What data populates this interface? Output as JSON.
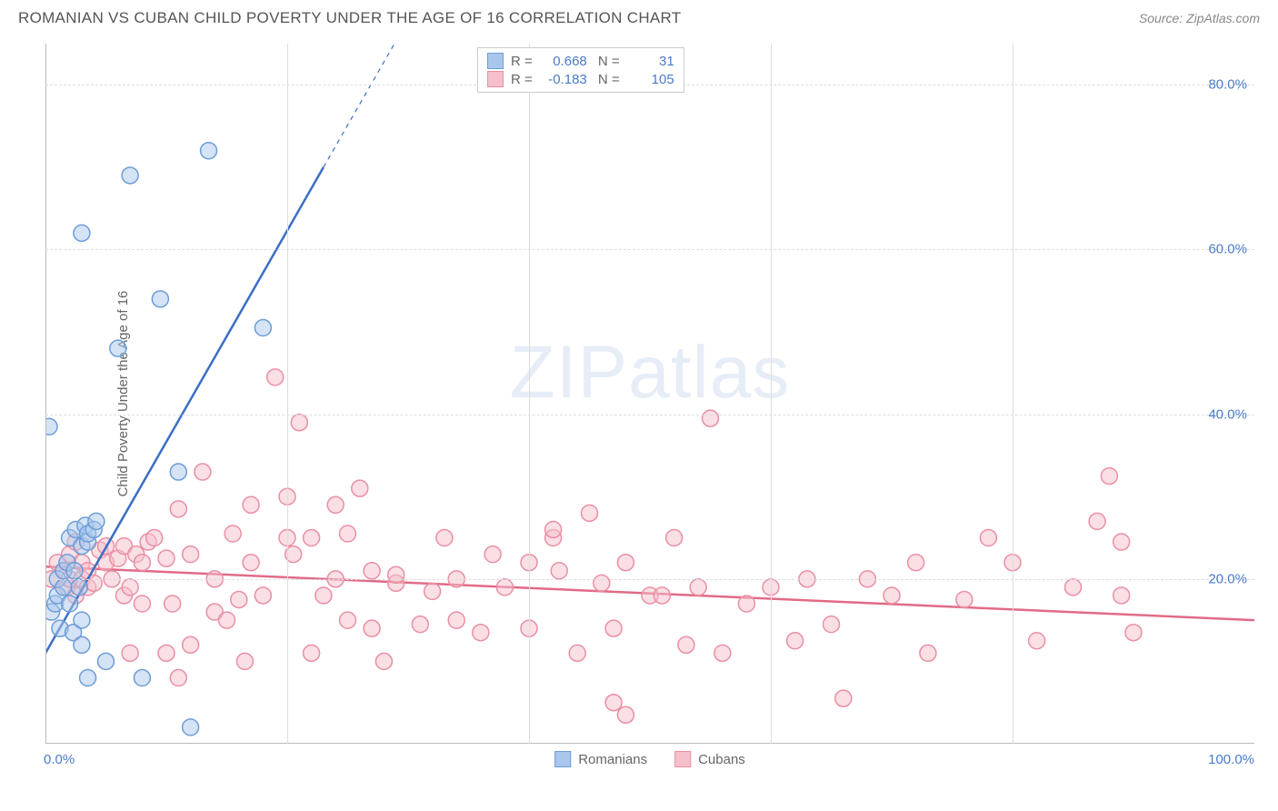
{
  "header": {
    "title": "ROMANIAN VS CUBAN CHILD POVERTY UNDER THE AGE OF 16 CORRELATION CHART",
    "source": "Source: ZipAtlas.com"
  },
  "chart": {
    "type": "scatter",
    "y_axis_label": "Child Poverty Under the Age of 16",
    "watermark": "ZIPatlas",
    "background_color": "#ffffff",
    "grid_color": "#dddddd",
    "axis_color": "#bbbbbb",
    "tick_color": "#4a7bc8",
    "xlim": [
      0,
      100
    ],
    "ylim": [
      0,
      85
    ],
    "yticks": [
      20,
      40,
      60,
      80
    ],
    "ytick_labels": [
      "20.0%",
      "40.0%",
      "60.0%",
      "80.0%"
    ],
    "xtick_left": "0.0%",
    "xtick_right": "100.0%",
    "vgrid_positions": [
      20,
      40,
      60,
      80
    ],
    "marker_radius": 9,
    "marker_opacity": 0.5,
    "marker_stroke_width": 1.5,
    "line_width": 2.5,
    "series": [
      {
        "name": "Romanians",
        "color_fill": "#a9c7ec",
        "color_stroke": "#6d9dd8",
        "line_color": "#3b6fc4",
        "r_value": "0.668",
        "n_value": "31",
        "trend": {
          "x1": 0,
          "y1": 11,
          "x2": 23,
          "y2": 70,
          "dash_x2": 32,
          "dash_y2": 93
        },
        "points": [
          [
            0.5,
            16
          ],
          [
            0.8,
            17
          ],
          [
            1,
            18
          ],
          [
            1,
            20
          ],
          [
            1.2,
            14
          ],
          [
            1.5,
            19
          ],
          [
            1.5,
            21
          ],
          [
            1.8,
            22
          ],
          [
            2,
            17
          ],
          [
            2,
            25
          ],
          [
            2.3,
            13.5
          ],
          [
            2.4,
            21
          ],
          [
            2.5,
            26
          ],
          [
            2.8,
            19
          ],
          [
            3,
            15
          ],
          [
            3,
            24
          ],
          [
            3.3,
            26.5
          ],
          [
            3.5,
            24.5
          ],
          [
            3.5,
            25.5
          ],
          [
            3,
            12
          ],
          [
            4,
            26
          ],
          [
            4.2,
            27
          ],
          [
            0.3,
            38.5
          ],
          [
            3,
            62
          ],
          [
            3.5,
            8
          ],
          [
            5,
            10
          ],
          [
            6,
            48
          ],
          [
            7,
            69
          ],
          [
            8,
            8
          ],
          [
            9.5,
            54
          ],
          [
            12,
            2
          ],
          [
            18,
            50.5
          ],
          [
            13.5,
            72
          ],
          [
            11,
            33
          ]
        ]
      },
      {
        "name": "Cubans",
        "color_fill": "#f6c0cb",
        "color_stroke": "#ea8fa3",
        "line_color": "#e16b88",
        "r_value": "-0.183",
        "n_value": "105",
        "trend": {
          "x1": 0,
          "y1": 21.5,
          "x2": 100,
          "y2": 15
        },
        "points": [
          [
            0.5,
            20
          ],
          [
            1,
            22
          ],
          [
            1.5,
            21
          ],
          [
            1.8,
            19
          ],
          [
            2,
            23
          ],
          [
            2,
            20
          ],
          [
            2.5,
            18
          ],
          [
            2.5,
            24.5
          ],
          [
            3,
            20
          ],
          [
            3,
            22
          ],
          [
            3.5,
            21
          ],
          [
            3.5,
            19
          ],
          [
            4,
            19.5
          ],
          [
            4.5,
            23.5
          ],
          [
            5,
            22
          ],
          [
            5,
            24
          ],
          [
            5.5,
            20
          ],
          [
            6,
            22.5
          ],
          [
            6.5,
            24
          ],
          [
            6.5,
            18
          ],
          [
            7,
            19
          ],
          [
            7,
            11
          ],
          [
            7.5,
            23
          ],
          [
            8,
            22
          ],
          [
            8,
            17
          ],
          [
            8.5,
            24.5
          ],
          [
            9,
            25
          ],
          [
            10,
            11
          ],
          [
            10,
            22.5
          ],
          [
            10.5,
            17
          ],
          [
            11,
            28.5
          ],
          [
            11,
            8
          ],
          [
            12,
            23
          ],
          [
            12,
            12
          ],
          [
            13,
            33
          ],
          [
            14,
            20
          ],
          [
            14,
            16
          ],
          [
            15,
            15
          ],
          [
            15.5,
            25.5
          ],
          [
            16,
            17.5
          ],
          [
            16.5,
            10
          ],
          [
            17,
            29
          ],
          [
            17,
            22
          ],
          [
            18,
            18
          ],
          [
            19,
            44.5
          ],
          [
            20,
            25
          ],
          [
            20,
            30
          ],
          [
            20.5,
            23
          ],
          [
            21,
            39
          ],
          [
            22,
            25
          ],
          [
            22,
            11
          ],
          [
            23,
            18
          ],
          [
            24,
            29
          ],
          [
            24,
            20
          ],
          [
            25,
            15
          ],
          [
            25,
            25.5
          ],
          [
            26,
            31
          ],
          [
            27,
            21
          ],
          [
            27,
            14
          ],
          [
            28,
            10
          ],
          [
            29,
            19.5
          ],
          [
            29,
            20.5
          ],
          [
            31,
            14.5
          ],
          [
            32,
            18.5
          ],
          [
            33,
            25
          ],
          [
            34,
            15
          ],
          [
            34,
            20
          ],
          [
            36,
            13.5
          ],
          [
            37,
            23
          ],
          [
            38,
            19
          ],
          [
            40,
            14
          ],
          [
            40,
            22
          ],
          [
            42,
            25
          ],
          [
            42,
            26
          ],
          [
            42.5,
            21
          ],
          [
            44,
            11
          ],
          [
            45,
            28
          ],
          [
            46,
            19.5
          ],
          [
            47,
            14
          ],
          [
            47,
            5
          ],
          [
            48,
            22
          ],
          [
            48,
            3.5
          ],
          [
            50,
            18
          ],
          [
            51,
            18
          ],
          [
            52,
            25
          ],
          [
            53,
            12
          ],
          [
            54,
            19
          ],
          [
            55,
            39.5
          ],
          [
            56,
            11
          ],
          [
            58,
            17
          ],
          [
            60,
            19
          ],
          [
            62,
            12.5
          ],
          [
            63,
            20
          ],
          [
            65,
            14.5
          ],
          [
            66,
            5.5
          ],
          [
            68,
            20
          ],
          [
            70,
            18
          ],
          [
            72,
            22
          ],
          [
            73,
            11
          ],
          [
            76,
            17.5
          ],
          [
            78,
            25
          ],
          [
            80,
            22
          ],
          [
            82,
            12.5
          ],
          [
            85,
            19
          ],
          [
            87,
            27
          ],
          [
            88,
            32.5
          ],
          [
            89,
            24.5
          ],
          [
            89,
            18
          ],
          [
            90,
            13.5
          ]
        ]
      }
    ],
    "bottom_legend": [
      {
        "fill": "#a9c7ec",
        "stroke": "#6d9dd8",
        "label": "Romanians"
      },
      {
        "fill": "#f6c0cb",
        "stroke": "#ea8fa3",
        "label": "Cubans"
      }
    ]
  }
}
